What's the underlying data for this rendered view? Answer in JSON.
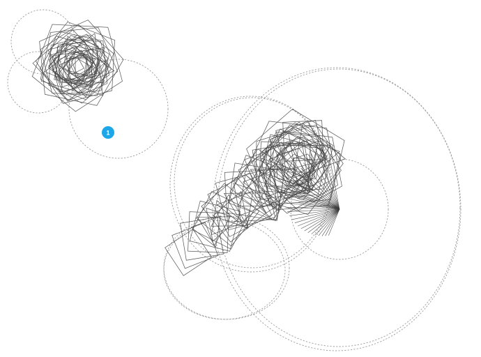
{
  "badge": {
    "label": "1",
    "color": "#1ea7e8"
  },
  "colors": {
    "background": "#ffffff",
    "stroke": "#4a4a4a",
    "guide": "#9b9b9b"
  },
  "figures": [
    {
      "id": "small-cluster",
      "description_name": "small-rotating-polygon-cluster"
    },
    {
      "id": "large-cluster",
      "description_name": "large-rotating-polygon-cluster"
    }
  ]
}
